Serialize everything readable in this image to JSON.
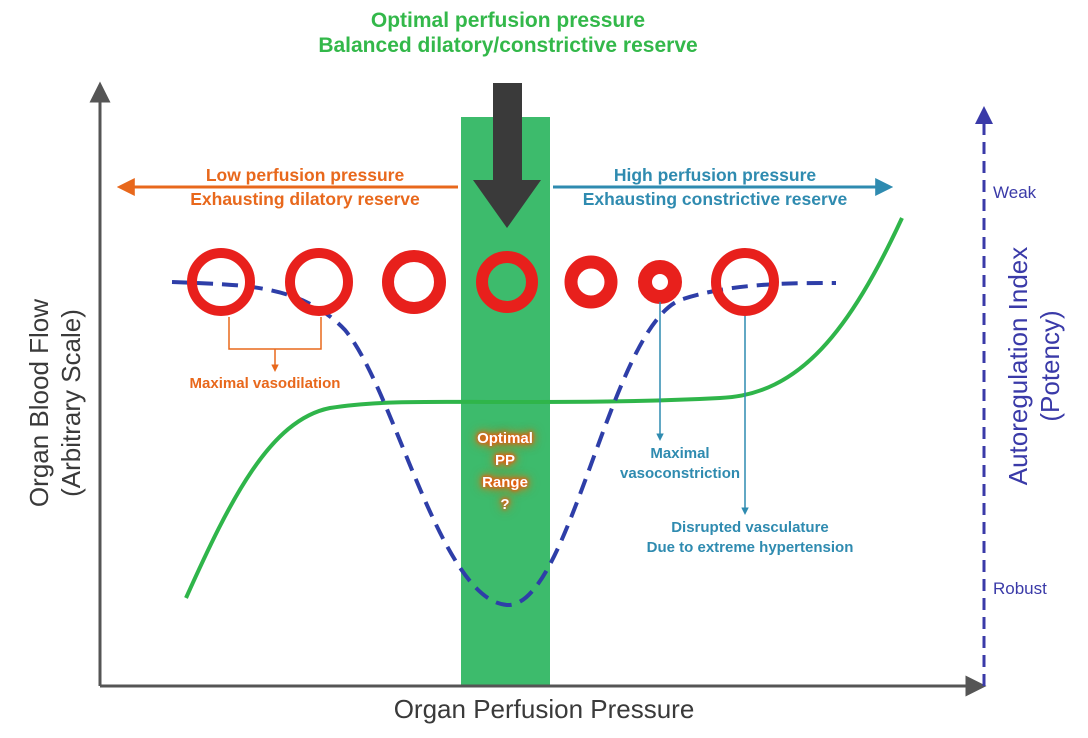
{
  "title": {
    "line1": "Optimal perfusion pressure",
    "line2": "Balanced dilatory/constrictive reserve"
  },
  "low_pressure": {
    "line1": "Low perfusion pressure",
    "line2": "Exhausting dilatory reserve"
  },
  "high_pressure": {
    "line1": "High perfusion pressure",
    "line2": "Exhausting constrictive reserve"
  },
  "annotations": {
    "maximal_vasodilation": "Maximal vasodilation",
    "maximal_vasoconstriction_1": "Maximal",
    "maximal_vasoconstriction_2": "vasoconstriction",
    "disrupted_1": "Disrupted vasculature",
    "disrupted_2": "Due to extreme hypertension"
  },
  "optimal_range": {
    "line1": "Optimal",
    "line2": "PP",
    "line3": "Range",
    "line4": "?"
  },
  "axes": {
    "x_label": "Organ Perfusion Pressure",
    "y_label_1": "Organ Blood Flow",
    "y_label_2": "(Arbitrary Scale)",
    "y2_label_1": "Autoregulation Index",
    "y2_label_2": "(Potency)",
    "y2_top": "Weak",
    "y2_bottom": "Robust"
  },
  "vessels": [
    {
      "name": "vessel-1",
      "relative_lumen": "large"
    },
    {
      "name": "vessel-2",
      "relative_lumen": "large"
    },
    {
      "name": "vessel-3",
      "relative_lumen": "medium"
    },
    {
      "name": "vessel-4",
      "relative_lumen": "optimal"
    },
    {
      "name": "vessel-5",
      "relative_lumen": "small"
    },
    {
      "name": "vessel-6",
      "relative_lumen": "smallest"
    },
    {
      "name": "vessel-7",
      "relative_lumen": "large"
    }
  ],
  "colors": {
    "green": "#33b84a",
    "band": "#3dbb6c",
    "orange": "#e8681c",
    "teal": "#2f8bb0",
    "navy": "#3a3aa8",
    "red": "#e8201c",
    "arrow": "#3a3a3a",
    "axis": "#555555"
  }
}
